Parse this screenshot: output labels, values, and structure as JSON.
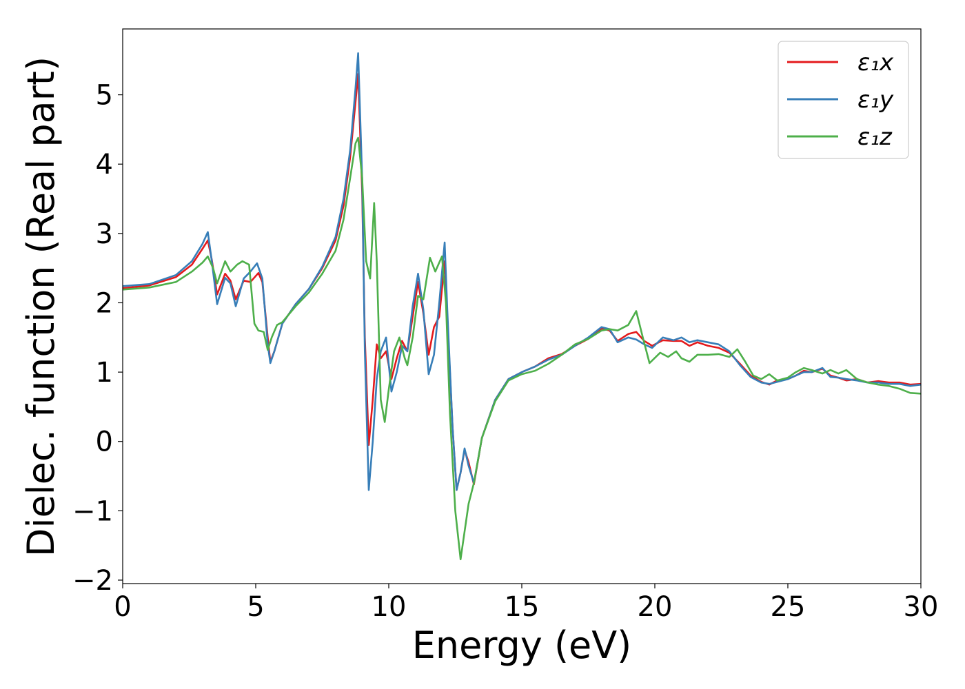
{
  "chart_data": {
    "type": "line",
    "title": "",
    "xlabel": "Energy (eV)",
    "ylabel": "Dielec. function (Real part)",
    "xlim": [
      0,
      30
    ],
    "ylim": [
      -2.05,
      5.95
    ],
    "xticks": [
      0,
      5,
      10,
      15,
      20,
      25,
      30
    ],
    "xtick_labels": [
      "0",
      "5",
      "10",
      "15",
      "20",
      "25",
      "30"
    ],
    "yticks": [
      -2,
      -1,
      0,
      1,
      2,
      3,
      4,
      5
    ],
    "ytick_labels": [
      "−2",
      "−1",
      "0",
      "1",
      "2",
      "3",
      "4",
      "5"
    ],
    "grid": false,
    "legend_position": "top-right",
    "series": [
      {
        "name": "ε₁x",
        "color": "#e41a1c",
        "points": [
          [
            0,
            2.21
          ],
          [
            1,
            2.25
          ],
          [
            2,
            2.37
          ],
          [
            2.6,
            2.55
          ],
          [
            3.0,
            2.78
          ],
          [
            3.2,
            2.9
          ],
          [
            3.35,
            2.62
          ],
          [
            3.55,
            2.12
          ],
          [
            3.85,
            2.42
          ],
          [
            4.05,
            2.32
          ],
          [
            4.25,
            2.05
          ],
          [
            4.55,
            2.32
          ],
          [
            4.8,
            2.3
          ],
          [
            5.1,
            2.43
          ],
          [
            5.25,
            2.3
          ],
          [
            5.45,
            1.5
          ],
          [
            5.55,
            1.15
          ],
          [
            5.7,
            1.3
          ],
          [
            6.0,
            1.7
          ],
          [
            6.5,
            1.98
          ],
          [
            7.0,
            2.2
          ],
          [
            7.5,
            2.5
          ],
          [
            8.0,
            2.9
          ],
          [
            8.3,
            3.4
          ],
          [
            8.55,
            4.1
          ],
          [
            8.75,
            4.9
          ],
          [
            8.85,
            5.3
          ],
          [
            9.0,
            3.6
          ],
          [
            9.1,
            1.5
          ],
          [
            9.25,
            -0.05
          ],
          [
            9.4,
            0.6
          ],
          [
            9.55,
            1.4
          ],
          [
            9.7,
            1.2
          ],
          [
            9.9,
            1.3
          ],
          [
            10.1,
            0.9
          ],
          [
            10.3,
            1.2
          ],
          [
            10.5,
            1.45
          ],
          [
            10.7,
            1.3
          ],
          [
            10.9,
            1.8
          ],
          [
            11.1,
            2.3
          ],
          [
            11.3,
            1.85
          ],
          [
            11.5,
            1.25
          ],
          [
            11.7,
            1.65
          ],
          [
            11.9,
            1.8
          ],
          [
            12.1,
            2.6
          ],
          [
            12.2,
            1.8
          ],
          [
            12.4,
            0.2
          ],
          [
            12.55,
            -0.7
          ],
          [
            12.7,
            -0.45
          ],
          [
            12.85,
            -0.12
          ],
          [
            13.0,
            -0.3
          ],
          [
            13.2,
            -0.62
          ],
          [
            13.5,
            0.05
          ],
          [
            14.0,
            0.6
          ],
          [
            14.5,
            0.9
          ],
          [
            15.0,
            1.0
          ],
          [
            15.5,
            1.08
          ],
          [
            16.0,
            1.2
          ],
          [
            16.5,
            1.26
          ],
          [
            17.0,
            1.38
          ],
          [
            17.5,
            1.48
          ],
          [
            18.0,
            1.63
          ],
          [
            18.3,
            1.6
          ],
          [
            18.6,
            1.45
          ],
          [
            19.0,
            1.55
          ],
          [
            19.3,
            1.58
          ],
          [
            19.6,
            1.45
          ],
          [
            19.9,
            1.38
          ],
          [
            20.3,
            1.46
          ],
          [
            20.7,
            1.45
          ],
          [
            21.0,
            1.45
          ],
          [
            21.3,
            1.38
          ],
          [
            21.6,
            1.43
          ],
          [
            22.0,
            1.38
          ],
          [
            22.4,
            1.35
          ],
          [
            22.8,
            1.28
          ],
          [
            23.2,
            1.12
          ],
          [
            23.6,
            0.95
          ],
          [
            24.0,
            0.86
          ],
          [
            24.3,
            0.82
          ],
          [
            24.6,
            0.88
          ],
          [
            25.0,
            0.9
          ],
          [
            25.3,
            0.95
          ],
          [
            25.6,
            1.02
          ],
          [
            25.9,
            1.0
          ],
          [
            26.3,
            1.05
          ],
          [
            26.6,
            0.95
          ],
          [
            26.9,
            0.92
          ],
          [
            27.2,
            0.88
          ],
          [
            27.6,
            0.9
          ],
          [
            28.0,
            0.85
          ],
          [
            28.4,
            0.87
          ],
          [
            28.8,
            0.85
          ],
          [
            29.2,
            0.85
          ],
          [
            29.6,
            0.82
          ],
          [
            30,
            0.83
          ]
        ]
      },
      {
        "name": "ε₁y",
        "color": "#377eb8",
        "points": [
          [
            0,
            2.24
          ],
          [
            1,
            2.27
          ],
          [
            2,
            2.4
          ],
          [
            2.6,
            2.6
          ],
          [
            3.0,
            2.85
          ],
          [
            3.2,
            3.02
          ],
          [
            3.35,
            2.6
          ],
          [
            3.55,
            1.98
          ],
          [
            3.85,
            2.36
          ],
          [
            4.05,
            2.28
          ],
          [
            4.25,
            1.95
          ],
          [
            4.55,
            2.35
          ],
          [
            4.8,
            2.45
          ],
          [
            5.05,
            2.57
          ],
          [
            5.25,
            2.35
          ],
          [
            5.45,
            1.4
          ],
          [
            5.55,
            1.13
          ],
          [
            5.7,
            1.3
          ],
          [
            6.0,
            1.7
          ],
          [
            6.5,
            1.98
          ],
          [
            7.0,
            2.2
          ],
          [
            7.5,
            2.52
          ],
          [
            8.0,
            2.95
          ],
          [
            8.3,
            3.5
          ],
          [
            8.55,
            4.2
          ],
          [
            8.75,
            5.1
          ],
          [
            8.85,
            5.6
          ],
          [
            9.0,
            3.8
          ],
          [
            9.1,
            1.3
          ],
          [
            9.25,
            -0.7
          ],
          [
            9.4,
            0.0
          ],
          [
            9.55,
            0.9
          ],
          [
            9.7,
            1.3
          ],
          [
            9.9,
            1.5
          ],
          [
            10.1,
            0.72
          ],
          [
            10.3,
            1.0
          ],
          [
            10.5,
            1.38
          ],
          [
            10.7,
            1.3
          ],
          [
            10.9,
            1.95
          ],
          [
            11.1,
            2.42
          ],
          [
            11.3,
            1.9
          ],
          [
            11.5,
            0.97
          ],
          [
            11.7,
            1.25
          ],
          [
            11.9,
            2.0
          ],
          [
            12.1,
            2.87
          ],
          [
            12.2,
            1.9
          ],
          [
            12.4,
            0.2
          ],
          [
            12.55,
            -0.7
          ],
          [
            12.7,
            -0.45
          ],
          [
            12.85,
            -0.1
          ],
          [
            13.0,
            -0.35
          ],
          [
            13.2,
            -0.6
          ],
          [
            13.5,
            0.05
          ],
          [
            14.0,
            0.6
          ],
          [
            14.5,
            0.9
          ],
          [
            15.0,
            1.0
          ],
          [
            15.5,
            1.08
          ],
          [
            16.0,
            1.18
          ],
          [
            16.5,
            1.25
          ],
          [
            17.0,
            1.38
          ],
          [
            17.5,
            1.5
          ],
          [
            18.0,
            1.65
          ],
          [
            18.3,
            1.62
          ],
          [
            18.6,
            1.43
          ],
          [
            19.0,
            1.5
          ],
          [
            19.3,
            1.47
          ],
          [
            19.6,
            1.4
          ],
          [
            19.9,
            1.35
          ],
          [
            20.3,
            1.5
          ],
          [
            20.7,
            1.46
          ],
          [
            21.0,
            1.5
          ],
          [
            21.3,
            1.43
          ],
          [
            21.6,
            1.46
          ],
          [
            22.0,
            1.43
          ],
          [
            22.4,
            1.4
          ],
          [
            22.8,
            1.3
          ],
          [
            23.2,
            1.1
          ],
          [
            23.6,
            0.93
          ],
          [
            24.0,
            0.85
          ],
          [
            24.3,
            0.83
          ],
          [
            24.6,
            0.86
          ],
          [
            25.0,
            0.9
          ],
          [
            25.3,
            0.95
          ],
          [
            25.6,
            1.0
          ],
          [
            25.9,
            1.0
          ],
          [
            26.3,
            1.06
          ],
          [
            26.6,
            0.93
          ],
          [
            26.9,
            0.92
          ],
          [
            27.2,
            0.9
          ],
          [
            27.6,
            0.88
          ],
          [
            28.0,
            0.85
          ],
          [
            28.4,
            0.85
          ],
          [
            28.8,
            0.83
          ],
          [
            29.2,
            0.83
          ],
          [
            29.6,
            0.8
          ],
          [
            30,
            0.82
          ]
        ]
      },
      {
        "name": "ε₁z",
        "color": "#4daf4a",
        "points": [
          [
            0,
            2.19
          ],
          [
            1,
            2.22
          ],
          [
            2,
            2.3
          ],
          [
            2.6,
            2.45
          ],
          [
            3.0,
            2.58
          ],
          [
            3.2,
            2.67
          ],
          [
            3.4,
            2.5
          ],
          [
            3.55,
            2.28
          ],
          [
            3.85,
            2.6
          ],
          [
            4.05,
            2.45
          ],
          [
            4.3,
            2.55
          ],
          [
            4.5,
            2.6
          ],
          [
            4.75,
            2.55
          ],
          [
            4.95,
            1.7
          ],
          [
            5.1,
            1.6
          ],
          [
            5.3,
            1.58
          ],
          [
            5.45,
            1.32
          ],
          [
            5.6,
            1.5
          ],
          [
            5.8,
            1.68
          ],
          [
            6.0,
            1.72
          ],
          [
            6.5,
            1.95
          ],
          [
            7.0,
            2.15
          ],
          [
            7.5,
            2.42
          ],
          [
            8.0,
            2.75
          ],
          [
            8.3,
            3.2
          ],
          [
            8.55,
            3.8
          ],
          [
            8.75,
            4.3
          ],
          [
            8.85,
            4.38
          ],
          [
            9.0,
            3.8
          ],
          [
            9.15,
            2.6
          ],
          [
            9.3,
            2.35
          ],
          [
            9.45,
            3.44
          ],
          [
            9.55,
            2.6
          ],
          [
            9.7,
            0.6
          ],
          [
            9.85,
            0.28
          ],
          [
            10.0,
            0.75
          ],
          [
            10.2,
            1.3
          ],
          [
            10.4,
            1.5
          ],
          [
            10.6,
            1.2
          ],
          [
            10.7,
            1.1
          ],
          [
            10.9,
            1.5
          ],
          [
            11.1,
            2.1
          ],
          [
            11.3,
            2.05
          ],
          [
            11.55,
            2.65
          ],
          [
            11.75,
            2.45
          ],
          [
            12.0,
            2.67
          ],
          [
            12.15,
            2.0
          ],
          [
            12.3,
            0.4
          ],
          [
            12.5,
            -1.0
          ],
          [
            12.7,
            -1.7
          ],
          [
            12.85,
            -1.3
          ],
          [
            13.0,
            -0.9
          ],
          [
            13.2,
            -0.6
          ],
          [
            13.5,
            0.05
          ],
          [
            14.0,
            0.58
          ],
          [
            14.5,
            0.88
          ],
          [
            15.0,
            0.97
          ],
          [
            15.5,
            1.02
          ],
          [
            16.0,
            1.12
          ],
          [
            16.5,
            1.25
          ],
          [
            17.0,
            1.4
          ],
          [
            17.5,
            1.48
          ],
          [
            18.0,
            1.6
          ],
          [
            18.3,
            1.62
          ],
          [
            18.6,
            1.6
          ],
          [
            19.0,
            1.68
          ],
          [
            19.3,
            1.88
          ],
          [
            19.55,
            1.5
          ],
          [
            19.8,
            1.13
          ],
          [
            20.2,
            1.28
          ],
          [
            20.5,
            1.22
          ],
          [
            20.8,
            1.3
          ],
          [
            21.0,
            1.2
          ],
          [
            21.3,
            1.15
          ],
          [
            21.6,
            1.25
          ],
          [
            22.0,
            1.25
          ],
          [
            22.4,
            1.26
          ],
          [
            22.8,
            1.22
          ],
          [
            23.1,
            1.33
          ],
          [
            23.4,
            1.15
          ],
          [
            23.7,
            0.95
          ],
          [
            24.0,
            0.9
          ],
          [
            24.3,
            0.97
          ],
          [
            24.6,
            0.88
          ],
          [
            25.0,
            0.92
          ],
          [
            25.3,
            1.0
          ],
          [
            25.6,
            1.06
          ],
          [
            25.9,
            1.03
          ],
          [
            26.3,
            0.98
          ],
          [
            26.6,
            1.03
          ],
          [
            26.9,
            0.98
          ],
          [
            27.2,
            1.03
          ],
          [
            27.6,
            0.9
          ],
          [
            28.0,
            0.85
          ],
          [
            28.4,
            0.82
          ],
          [
            28.8,
            0.8
          ],
          [
            29.2,
            0.76
          ],
          [
            29.6,
            0.7
          ],
          [
            30,
            0.69
          ]
        ]
      }
    ]
  }
}
